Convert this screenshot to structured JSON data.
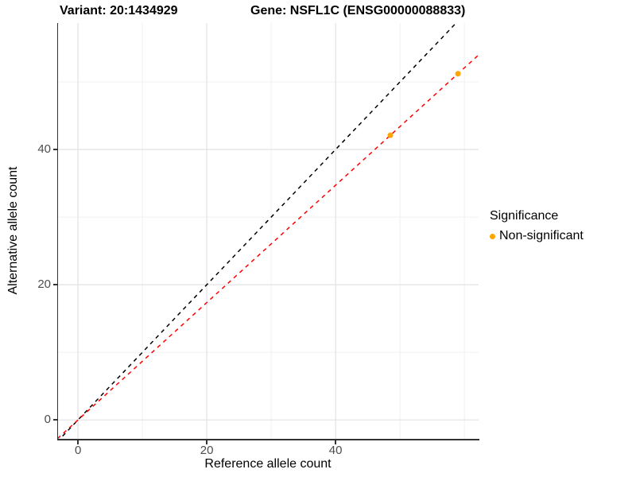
{
  "titles": {
    "left": "Variant: 20:1434929",
    "right": "Gene: NSFL1C (ENSG00000088833)"
  },
  "legend": {
    "title": "Significance",
    "items": [
      {
        "label": "Non-significant",
        "color": "#FFA500"
      }
    ]
  },
  "chart_data": {
    "type": "scatter",
    "title": "Variant: 20:1434929 — Gene: NSFL1C (ENSG00000088833)",
    "xlabel": "Reference allele count",
    "ylabel": "Alternative allele count",
    "xlim": [
      -3.1,
      62.2
    ],
    "ylim": [
      -2.8,
      58.7
    ],
    "x_major_ticks": [
      0,
      20,
      40
    ],
    "y_major_ticks": [
      0,
      20,
      40
    ],
    "x_minor_gridlines": [
      10,
      30,
      50,
      60
    ],
    "y_minor_gridlines": [
      10,
      30,
      50
    ],
    "grid": "on",
    "legend_position": "right",
    "series": [
      {
        "name": "Non-significant",
        "color": "#FFA500",
        "points": [
          {
            "x": 48.5,
            "y": 42.1
          },
          {
            "x": 59.0,
            "y": 51.2
          }
        ]
      }
    ],
    "lines": [
      {
        "name": "identity-line",
        "slope": 1.0,
        "intercept": 0,
        "color": "#000000",
        "style": "dashed"
      },
      {
        "name": "fitted-ratio-line",
        "slope": 0.868,
        "intercept": 0,
        "color": "#FF0000",
        "style": "dashed"
      }
    ],
    "colors": {
      "major_grid": "#e2e2e2",
      "minor_grid": "#f0f0f0",
      "axis": "#333333",
      "tick_text": "#4d4d4d"
    }
  }
}
